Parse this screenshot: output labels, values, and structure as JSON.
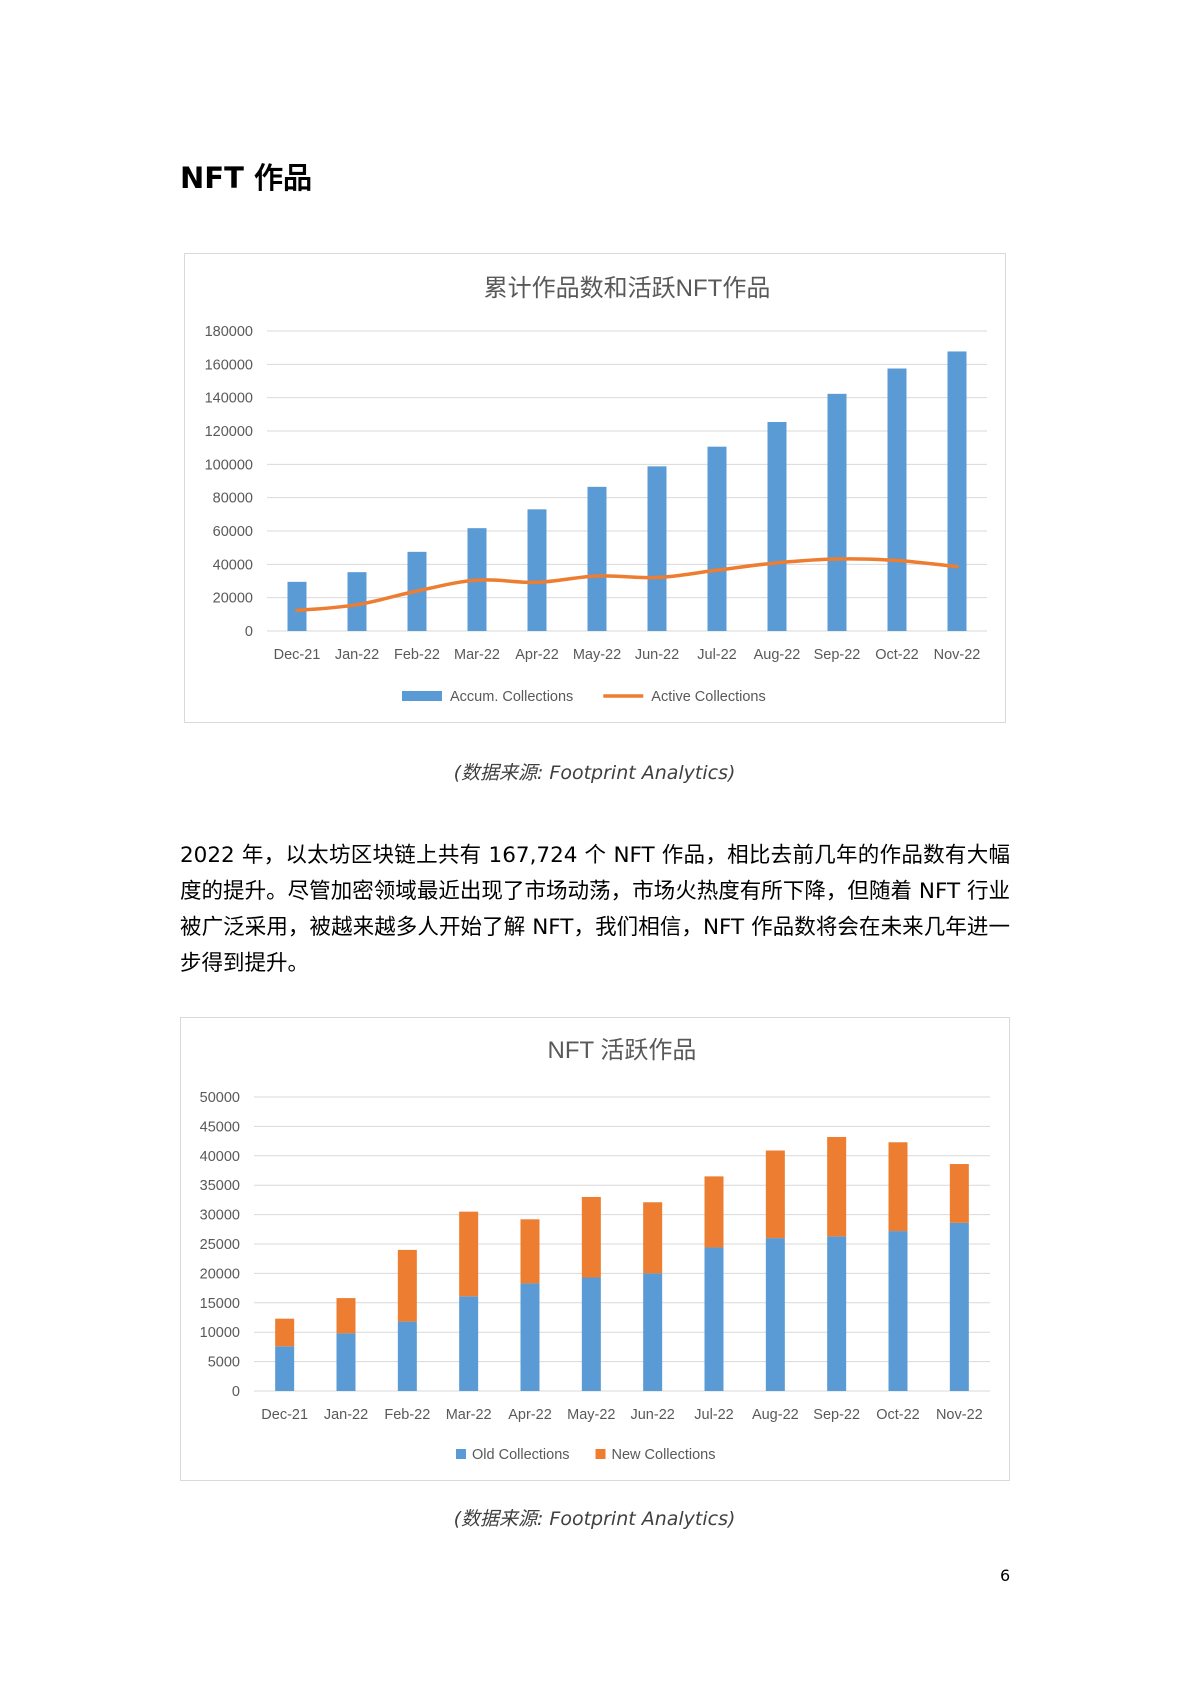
{
  "heading": "NFT 作品",
  "paragraph": "2022 年，以太坊区块链上共有 167,724 个 NFT 作品，相比去前几年的作品数有大幅度的提升。尽管加密领域最近出现了市场动荡，市场火热度有所下降，但随着 NFT 行业被广泛采用，被越来越多人开始了解 NFT，我们相信，NFT 作品数将会在未来几年进一步得到提升。",
  "caption1": "(数据来源: Footprint Analytics)",
  "caption2": "(数据来源: Footprint Analytics)",
  "page_number": "6",
  "colors": {
    "blue": "#5b9bd5",
    "orange": "#ed7d31",
    "grid": "#d9d9d9",
    "axis_text": "#595959",
    "title_text": "#595959"
  },
  "chart_data": [
    {
      "type": "bar",
      "title": "累计作品数和活跃NFT作品",
      "categories": [
        "Dec-21",
        "Jan-22",
        "Feb-22",
        "Mar-22",
        "Apr-22",
        "May-22",
        "Jun-22",
        "Jul-22",
        "Aug-22",
        "Sep-22",
        "Oct-22",
        "Nov-22"
      ],
      "ylim": [
        0,
        180000
      ],
      "yticks": [
        "0",
        "20000",
        "40000",
        "60000",
        "80000",
        "100000",
        "120000",
        "140000",
        "160000",
        "180000"
      ],
      "grid": true,
      "legend_position": "bottom",
      "series": [
        {
          "name": "Accum. Collections",
          "type": "bar",
          "color": "#5b9bd5",
          "values": [
            29500,
            35300,
            47500,
            61700,
            73000,
            86500,
            98800,
            110600,
            125400,
            142300,
            157500,
            167724
          ]
        },
        {
          "name": "Active Collections",
          "type": "line",
          "color": "#ed7d31",
          "values": [
            12300,
            15800,
            24000,
            30500,
            29200,
            33000,
            32100,
            36500,
            40900,
            43200,
            42300,
            38600
          ]
        }
      ]
    },
    {
      "type": "bar",
      "stacked": true,
      "title": "NFT 活跃作品",
      "categories": [
        "Dec-21",
        "Jan-22",
        "Feb-22",
        "Mar-22",
        "Apr-22",
        "May-22",
        "Jun-22",
        "Jul-22",
        "Aug-22",
        "Sep-22",
        "Oct-22",
        "Nov-22"
      ],
      "ylim": [
        0,
        50000
      ],
      "yticks": [
        "0",
        "5000",
        "10000",
        "15000",
        "20000",
        "25000",
        "30000",
        "35000",
        "40000",
        "45000",
        "50000"
      ],
      "grid": true,
      "legend_position": "bottom",
      "series": [
        {
          "name": "Old Collections",
          "color": "#5b9bd5",
          "values": [
            7600,
            9800,
            11800,
            16100,
            18300,
            19300,
            20000,
            24400,
            26000,
            26300,
            27200,
            28600
          ]
        },
        {
          "name": "New Collections",
          "color": "#ed7d31",
          "values": [
            4700,
            6000,
            12200,
            14400,
            10900,
            13700,
            12100,
            12100,
            14900,
            16900,
            15100,
            10000
          ]
        }
      ]
    }
  ]
}
